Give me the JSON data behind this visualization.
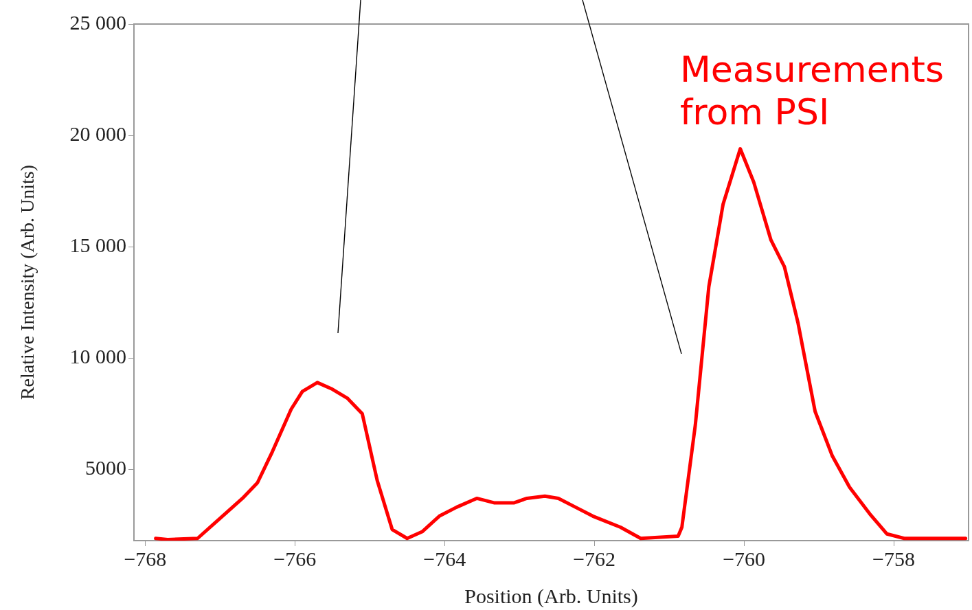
{
  "chart_data": {
    "type": "line",
    "xlabel": "Position (Arb. Units)",
    "ylabel": "Relative Intensity (Arb. Units)",
    "annotations": [
      "Measurements from PSI"
    ],
    "series": [
      {
        "color": "#ff0000",
        "x": [
          -767.86,
          -767.7,
          -767.3,
          -766.9,
          -766.7,
          -766.5,
          -766.3,
          -766.05,
          -765.9,
          -765.7,
          -765.5,
          -765.3,
          -765.1,
          -764.9,
          -764.7,
          -764.5,
          -764.3,
          -764.07,
          -763.84,
          -763.57,
          -763.34,
          -763.07,
          -762.9,
          -762.66,
          -762.48,
          -762.25,
          -762.02,
          -761.65,
          -761.38,
          -760.88,
          -760.83,
          -760.65,
          -760.47,
          -760.28,
          -760.05,
          -759.87,
          -759.64,
          -759.46,
          -759.28,
          -759.05,
          -758.82,
          -758.59,
          -758.32,
          -758.09,
          -757.86,
          -757.04
        ],
        "values": [
          1900,
          1850,
          1900,
          3100,
          3700,
          4400,
          5800,
          7700,
          8500,
          8900,
          8600,
          8200,
          7500,
          4500,
          2300,
          1900,
          2200,
          2900,
          3300,
          3700,
          3500,
          3500,
          3700,
          3800,
          3700,
          3300,
          2900,
          2400,
          1900,
          2000,
          2400,
          7000,
          13200,
          16900,
          19400,
          17900,
          15300,
          14100,
          11600,
          7600,
          5600,
          4200,
          3000,
          2100,
          1900,
          1900
        ]
      }
    ],
    "xlim": [
      -768.15,
      -757.0
    ],
    "ylim": [
      1800,
      25000
    ],
    "xticks": [
      {
        "value": -768,
        "label": "−768"
      },
      {
        "value": -766,
        "label": "−766"
      },
      {
        "value": -764,
        "label": "−764"
      },
      {
        "value": -762,
        "label": "−762"
      },
      {
        "value": -760,
        "label": "−760"
      },
      {
        "value": -758,
        "label": "−758"
      }
    ],
    "yticks": [
      5000,
      {
        "value": 10000,
        "label": "10 000"
      },
      {
        "value": 15000,
        "label": "15 000"
      },
      {
        "value": 20000,
        "label": "20 000"
      },
      {
        "value": 25000,
        "label": "25 000"
      }
    ],
    "grid": false,
    "legend": false,
    "marker": "none",
    "line_style": "solid"
  }
}
